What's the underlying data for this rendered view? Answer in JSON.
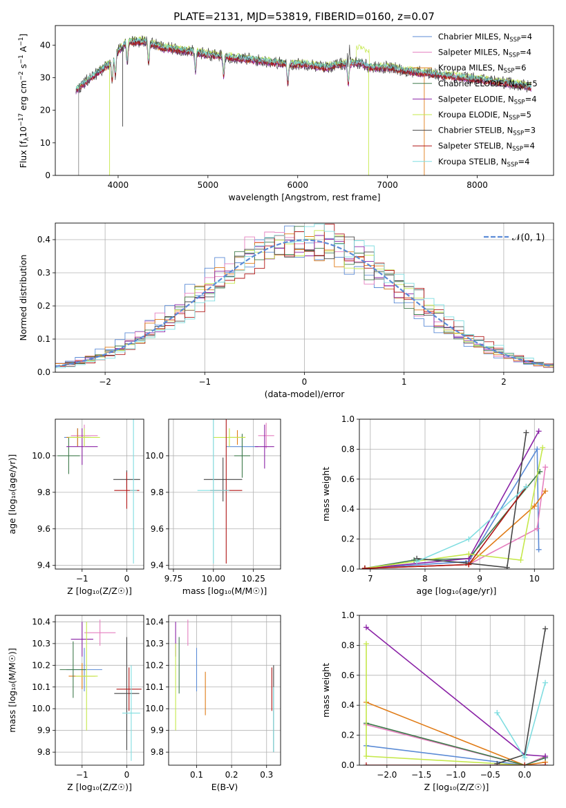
{
  "title": "PLATE=2131, MJD=53819, FIBERID=0160, z=0.07",
  "colors": {
    "chabrier_miles": "#5b8bd6",
    "salpeter_miles": "#e57fbf",
    "kroupa_miles": "#e07b16",
    "chabrier_elodie": "#3d7a4a",
    "salpeter_elodie": "#8a22a6",
    "kroupa_elodie": "#c5e84a",
    "chabrier_stelib": "#444444",
    "salpeter_stelib": "#b01515",
    "kroupa_stelib": "#7fdde0"
  },
  "chart_data": [
    {
      "id": "spectrum",
      "type": "line",
      "xlabel": "wavelength [Angstrom, rest frame]",
      "ylabel_main": "Flux [f",
      "ylabel_sub": "λ",
      "ylabel_mid": "10",
      "ylabel_exp1": "−17",
      "ylabel_mid2": " erg cm",
      "ylabel_exp2": "−2",
      "ylabel_mid3": " s",
      "ylabel_exp3": "−1",
      "ylabel_mid4": " A",
      "ylabel_exp4": "−1",
      "ylabel_end": "]",
      "xlim": [
        3300,
        8850
      ],
      "ylim": [
        0,
        46
      ],
      "xticks": [
        "4000",
        "5000",
        "6000",
        "7000",
        "8000"
      ],
      "yticks": [
        "0",
        "10",
        "20",
        "30",
        "40"
      ],
      "continuum": {
        "x": [
          3530,
          3700,
          3900,
          4000,
          4100,
          4300,
          4500,
          4800,
          5000,
          5300,
          5600,
          5900,
          6100,
          6300,
          6500,
          6700,
          6800,
          7000,
          7200,
          7500,
          7800,
          8100,
          8400,
          8600
        ],
        "y": [
          26,
          30,
          34,
          38,
          41,
          41,
          39,
          38,
          37,
          36,
          35,
          34,
          34,
          33,
          34,
          34.5,
          33,
          33,
          32,
          31,
          30,
          29,
          28,
          27
        ]
      },
      "series_spread": [
        0,
        0.4,
        -0.3,
        0.6,
        -0.5,
        0.9,
        0.2,
        -0.2,
        0.5
      ],
      "legend": [
        {
          "label": "Chabrier MILES, N",
          "sub": "SSP",
          "val": "=4",
          "color": "#5b8bd6"
        },
        {
          "label": "Salpeter MILES, N",
          "sub": "SSP",
          "val": "=4",
          "color": "#e57fbf"
        },
        {
          "label": "Kroupa MILES, N",
          "sub": "SSP",
          "val": "=6",
          "color": "#e07b16"
        },
        {
          "label": "Chabrier ELODIE, N",
          "sub": "SSP",
          "val": "=5",
          "color": "#3d7a4a"
        },
        {
          "label": "Salpeter ELODIE, N",
          "sub": "SSP",
          "val": "=4",
          "color": "#8a22a6"
        },
        {
          "label": "Kroupa ELODIE, N",
          "sub": "SSP",
          "val": "=5",
          "color": "#c5e84a"
        },
        {
          "label": "Chabrier STELIB, N",
          "sub": "SSP",
          "val": "=3",
          "color": "#444444"
        },
        {
          "label": "Salpeter STELIB, N",
          "sub": "SSP",
          "val": "=4",
          "color": "#b01515"
        },
        {
          "label": "Kroupa STELIB, N",
          "sub": "SSP",
          "val": "=4",
          "color": "#7fdde0"
        }
      ]
    },
    {
      "id": "residuals",
      "type": "line",
      "xlabel": "(data-model)/error",
      "ylabel": "Normed distribution",
      "xlim": [
        -2.5,
        2.5
      ],
      "ylim": [
        0,
        0.45
      ],
      "xticks": [
        "−2",
        "−1",
        "0",
        "1",
        "2"
      ],
      "yticks": [
        "0.0",
        "0.1",
        "0.2",
        "0.3",
        "0.4"
      ],
      "legend_label": "𝒩(0, 1)",
      "bin_width": 0.1,
      "gaussian_color": "#5b8bd6"
    },
    {
      "id": "age_vs_Z",
      "type": "scatter",
      "xlabel": "Z [log₁₀(Z/Z☉)]",
      "ylabel": "age  [log₁₀(age/yr)]",
      "xlim": [
        -1.6,
        0.38
      ],
      "ylim": [
        9.38,
        10.2
      ],
      "xticks": [
        "−1",
        "0"
      ],
      "yticks": [
        "9.4",
        "9.6",
        "9.8",
        "10.0"
      ],
      "points": [
        {
          "x": -1.1,
          "y": 10.1,
          "xerr": 0.3,
          "yerr": 0.05,
          "color": "#5b8bd6"
        },
        {
          "x": -0.95,
          "y": 10.11,
          "xerr": 0.3,
          "yerr": 0.06,
          "color": "#e57fbf"
        },
        {
          "x": -1.1,
          "y": 10.1,
          "xerr": 0.25,
          "yerr": 0.05,
          "color": "#e07b16"
        },
        {
          "x": -1.3,
          "y": 10.0,
          "xerr": 0.25,
          "yerr": 0.1,
          "color": "#3d7a4a"
        },
        {
          "x": -1.0,
          "y": 10.05,
          "xerr": 0.35,
          "yerr": 0.1,
          "color": "#8a22a6"
        },
        {
          "x": -0.95,
          "y": 10.1,
          "xerr": 0.35,
          "yerr": 0.05,
          "color": "#c5e84a"
        },
        {
          "x": 0.0,
          "y": 9.87,
          "xerr": 0.3,
          "yerr": 0.05,
          "color": "#444444"
        },
        {
          "x": 0.0,
          "y": 9.81,
          "xerr": 0.28,
          "yerr": 0.1,
          "color": "#b01515"
        },
        {
          "x": 0.15,
          "y": 9.81,
          "xerr": 0.08,
          "yerr": 0.4,
          "color": "#7fdde0"
        }
      ]
    },
    {
      "id": "age_vs_mass",
      "type": "scatter",
      "xlabel": "mass [log₁₀(M/M☉)]",
      "ylabel": "",
      "xlim": [
        9.72,
        10.42
      ],
      "ylim": [
        9.38,
        10.2
      ],
      "xticks": [
        "9.75",
        "10.00",
        "10.25"
      ],
      "yticks": [
        "9.4",
        "9.6",
        "9.8",
        "10.0"
      ],
      "points": [
        {
          "x": 10.18,
          "y": 10.05,
          "xerr": 0.1,
          "yerr": 0.06,
          "color": "#5b8bd6"
        },
        {
          "x": 10.33,
          "y": 10.11,
          "xerr": 0.05,
          "yerr": 0.07,
          "color": "#e57fbf"
        },
        {
          "x": 10.15,
          "y": 10.1,
          "xerr": 0.05,
          "yerr": 0.04,
          "color": "#e07b16"
        },
        {
          "x": 10.18,
          "y": 10.0,
          "xerr": 0.05,
          "yerr": 0.12,
          "color": "#3d7a4a"
        },
        {
          "x": 10.32,
          "y": 10.05,
          "xerr": 0.06,
          "yerr": 0.12,
          "color": "#8a22a6"
        },
        {
          "x": 10.1,
          "y": 10.1,
          "xerr": 0.1,
          "yerr": 0.05,
          "color": "#c5e84a"
        },
        {
          "x": 10.06,
          "y": 9.87,
          "xerr": 0.12,
          "yerr": 0.12,
          "color": "#444444"
        },
        {
          "x": 10.08,
          "y": 9.81,
          "xerr": 0.1,
          "yerr": 0.4,
          "color": "#b01515"
        },
        {
          "x": 10.0,
          "y": 9.81,
          "xerr": 0.1,
          "yerr": 0.4,
          "color": "#7fdde0"
        }
      ]
    },
    {
      "id": "weight_vs_age",
      "type": "line",
      "xlabel": "age  [log₁₀(age/yr)]",
      "ylabel": "mass weight",
      "xlim": [
        6.8,
        10.35
      ],
      "ylim": [
        0,
        1
      ],
      "xticks": [
        "7",
        "8",
        "9",
        "10"
      ],
      "yticks": [
        "0.0",
        "0.2",
        "0.4",
        "0.6",
        "0.8",
        "1.0"
      ],
      "series": [
        {
          "color": "#5b8bd6",
          "x": [
            6.9,
            8.8,
            10.05,
            10.08
          ],
          "y": [
            0.005,
            0.05,
            0.8,
            0.13
          ]
        },
        {
          "color": "#e57fbf",
          "x": [
            6.9,
            8.8,
            10.05,
            10.2
          ],
          "y": [
            0.005,
            0.03,
            0.27,
            0.68
          ]
        },
        {
          "color": "#e07b16",
          "x": [
            6.9,
            8.8,
            10.0,
            10.2
          ],
          "y": [
            0.005,
            0.03,
            0.42,
            0.52
          ]
        },
        {
          "color": "#3d7a4a",
          "x": [
            6.9,
            7.8,
            8.8,
            10.1
          ],
          "y": [
            0.005,
            0.06,
            0.07,
            0.65
          ]
        },
        {
          "color": "#8a22a6",
          "x": [
            6.9,
            8.8,
            10.08
          ],
          "y": [
            0.005,
            0.07,
            0.92
          ]
        },
        {
          "color": "#c5e84a",
          "x": [
            6.9,
            8.8,
            9.75,
            10.15
          ],
          "y": [
            0.005,
            0.1,
            0.06,
            0.81
          ]
        },
        {
          "color": "#444444",
          "x": [
            7.85,
            8.75,
            9.5,
            9.85
          ],
          "y": [
            0.07,
            0.04,
            0.01,
            0.91
          ]
        },
        {
          "color": "#b01515",
          "x": [
            6.9,
            8.8,
            9.85
          ],
          "y": [
            0.005,
            0.03,
            0.55
          ]
        },
        {
          "color": "#7fdde0",
          "x": [
            7.85,
            8.8,
            9.85
          ],
          "y": [
            0.05,
            0.2,
            0.55
          ]
        }
      ]
    },
    {
      "id": "mass_vs_Z",
      "type": "scatter",
      "xlabel": "Z [log₁₀(Z/Z☉)]",
      "ylabel": "mass [log₁₀(M/M☉)]",
      "xlim": [
        -1.6,
        0.38
      ],
      "ylim": [
        9.74,
        10.43
      ],
      "xticks": [
        "−1",
        "0"
      ],
      "yticks": [
        "9.8",
        "9.9",
        "10.0",
        "10.1",
        "10.2",
        "10.3",
        "10.4"
      ],
      "points": [
        {
          "x": -0.95,
          "y": 10.18,
          "xerr": 0.4,
          "yerr": 0.1,
          "color": "#5b8bd6"
        },
        {
          "x": -0.6,
          "y": 10.35,
          "xerr": 0.35,
          "yerr": 0.06,
          "color": "#e57fbf"
        },
        {
          "x": -1.0,
          "y": 10.15,
          "xerr": 0.3,
          "yerr": 0.06,
          "color": "#e07b16"
        },
        {
          "x": -1.2,
          "y": 10.18,
          "xerr": 0.3,
          "yerr": 0.13,
          "color": "#3d7a4a"
        },
        {
          "x": -1.0,
          "y": 10.32,
          "xerr": 0.25,
          "yerr": 0.08,
          "color": "#8a22a6"
        },
        {
          "x": -0.9,
          "y": 10.15,
          "xerr": 0.25,
          "yerr": 0.25,
          "color": "#c5e84a"
        },
        {
          "x": 0.0,
          "y": 10.07,
          "xerr": 0.28,
          "yerr": 0.26,
          "color": "#444444"
        },
        {
          "x": 0.05,
          "y": 10.09,
          "xerr": 0.28,
          "yerr": 0.1,
          "color": "#b01515"
        },
        {
          "x": 0.1,
          "y": 9.98,
          "xerr": 0.2,
          "yerr": 0.22,
          "color": "#7fdde0"
        }
      ]
    },
    {
      "id": "mass_vs_EBV",
      "type": "scatter",
      "xlabel": "E(B-V)",
      "ylabel": "",
      "xlim": [
        0.02,
        0.34
      ],
      "ylim": [
        9.74,
        10.43
      ],
      "xticks": [
        "0.1",
        "0.2",
        "0.3"
      ],
      "yticks": [
        "9.8",
        "9.9",
        "10.0",
        "10.1",
        "10.2",
        "10.3",
        "10.4"
      ],
      "points": [
        {
          "x": 0.1,
          "y": 10.18,
          "yerr": 0.1,
          "color": "#5b8bd6"
        },
        {
          "x": 0.075,
          "y": 10.35,
          "yerr": 0.06,
          "color": "#e57fbf"
        },
        {
          "x": 0.125,
          "y": 10.07,
          "yerr": 0.1,
          "color": "#e07b16"
        },
        {
          "x": 0.05,
          "y": 10.2,
          "yerr": 0.13,
          "color": "#3d7a4a"
        },
        {
          "x": 0.04,
          "y": 10.32,
          "yerr": 0.08,
          "color": "#8a22a6"
        },
        {
          "x": 0.04,
          "y": 10.1,
          "yerr": 0.2,
          "color": "#c5e84a"
        },
        {
          "x": 0.32,
          "y": 10.0,
          "yerr": 0.2,
          "color": "#444444"
        },
        {
          "x": 0.315,
          "y": 10.09,
          "yerr": 0.1,
          "color": "#b01515"
        },
        {
          "x": 0.32,
          "y": 9.95,
          "yerr": 0.15,
          "color": "#7fdde0"
        }
      ]
    },
    {
      "id": "weight_vs_Z",
      "type": "line",
      "xlabel": "Z [log₁₀(Z/Z☉)]",
      "ylabel": "mass weight",
      "xlim": [
        -2.4,
        0.42
      ],
      "ylim": [
        0,
        1
      ],
      "xticks": [
        "−2.0",
        "−1.5",
        "−1.0",
        "−0.5",
        "0.0"
      ],
      "yticks": [
        "0.0",
        "0.2",
        "0.4",
        "0.6",
        "0.8",
        "1.0"
      ],
      "series": [
        {
          "color": "#5b8bd6",
          "x": [
            -2.3,
            0.0,
            0.3
          ],
          "y": [
            0.13,
            0.0,
            0.05
          ]
        },
        {
          "color": "#e57fbf",
          "x": [
            -2.3,
            0.0,
            0.3
          ],
          "y": [
            0.27,
            0.0,
            0.06
          ]
        },
        {
          "color": "#e07b16",
          "x": [
            -2.3,
            0.0,
            0.3
          ],
          "y": [
            0.42,
            0.0,
            0.02
          ]
        },
        {
          "color": "#3d7a4a",
          "x": [
            -2.3,
            0.0,
            0.3
          ],
          "y": [
            0.28,
            0.0,
            0.05
          ]
        },
        {
          "color": "#8a22a6",
          "x": [
            -2.3,
            0.0,
            0.3
          ],
          "y": [
            0.92,
            0.07,
            0.06
          ]
        },
        {
          "color": "#c5e84a",
          "x": [
            -2.3,
            -2.3,
            0.0
          ],
          "y": [
            0.81,
            0.06,
            0.0
          ]
        },
        {
          "color": "#444444",
          "x": [
            -0.4,
            0.0,
            0.3
          ],
          "y": [
            0.01,
            0.07,
            0.91
          ]
        },
        {
          "color": "#b01515",
          "x": [
            -2.3,
            0.0,
            0.3
          ],
          "y": [
            0.0,
            0.0,
            0.0
          ]
        },
        {
          "color": "#7fdde0",
          "x": [
            -0.4,
            0.0,
            0.3
          ],
          "y": [
            0.35,
            0.05,
            0.55
          ]
        }
      ]
    }
  ]
}
